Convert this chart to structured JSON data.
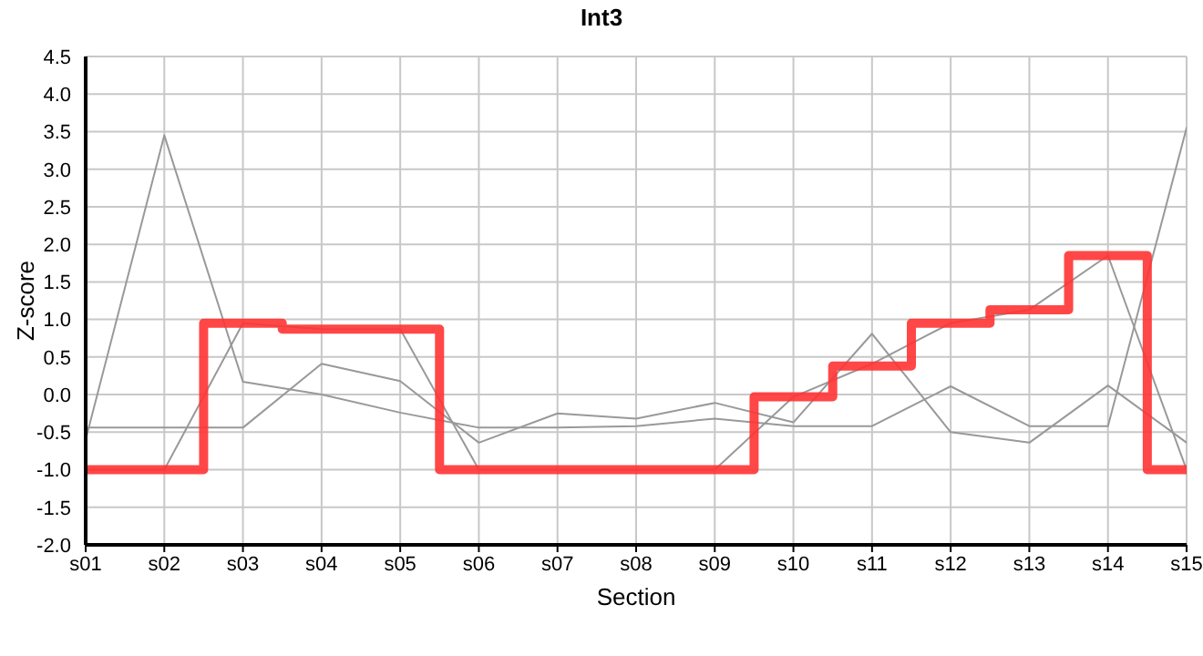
{
  "chart_data": {
    "type": "line",
    "title": "Int3",
    "xlabel": "Section",
    "ylabel": "Z-score",
    "categories": [
      "s01",
      "s02",
      "s03",
      "s04",
      "s05",
      "s06",
      "s07",
      "s08",
      "s09",
      "s10",
      "s11",
      "s12",
      "s13",
      "s14",
      "s15"
    ],
    "series": [
      {
        "color": "#999999",
        "values": [
          -0.6,
          3.45,
          0.17,
          0.0,
          -0.24,
          -0.44,
          -0.44,
          -0.42,
          -0.32,
          -0.42,
          -0.42,
          0.11,
          -0.42,
          -0.42,
          3.55
        ]
      },
      {
        "color": "#999999",
        "values": [
          -0.44,
          -0.44,
          -0.44,
          0.41,
          0.18,
          -0.64,
          -0.25,
          -0.32,
          -0.11,
          -0.37,
          0.81,
          -0.5,
          -0.64,
          0.12,
          -0.64
        ]
      },
      {
        "color": "#999999",
        "values": [
          -1,
          -1,
          0.95,
          0.87,
          0.87,
          -1,
          -1,
          -1,
          -1,
          -0.03,
          0.41,
          0.95,
          1.13,
          1.85,
          -1
        ]
      },
      {
        "type": "step",
        "color": "#ff3333",
        "values": [
          -1,
          -1,
          0.95,
          0.87,
          0.87,
          -1,
          -1,
          -1,
          -1,
          -0.03,
          0.38,
          0.95,
          1.13,
          1.85,
          -1
        ]
      }
    ],
    "ylim": [
      -2,
      4.5
    ],
    "yticks": [
      {
        "value": -2,
        "label": "-2.0"
      },
      {
        "value": -1.5,
        "label": "-1.5"
      },
      {
        "value": -1,
        "label": "-1.0"
      },
      {
        "value": -0.5,
        "label": "-0.5"
      },
      {
        "value": 0,
        "label": "0.0"
      },
      {
        "value": 0.5,
        "label": "0.5"
      },
      {
        "value": 1,
        "label": "1.0"
      },
      {
        "value": 1.5,
        "label": "1.5"
      },
      {
        "value": 2,
        "label": "2.0"
      },
      {
        "value": 2.5,
        "label": "2.5"
      },
      {
        "value": 3,
        "label": "3.0"
      },
      {
        "value": 3.5,
        "label": "3.5"
      },
      {
        "value": 4,
        "label": "4.0"
      },
      {
        "value": 4.5,
        "label": "4.5"
      }
    ],
    "grid": true,
    "marker": "none",
    "line_style": "solid"
  }
}
